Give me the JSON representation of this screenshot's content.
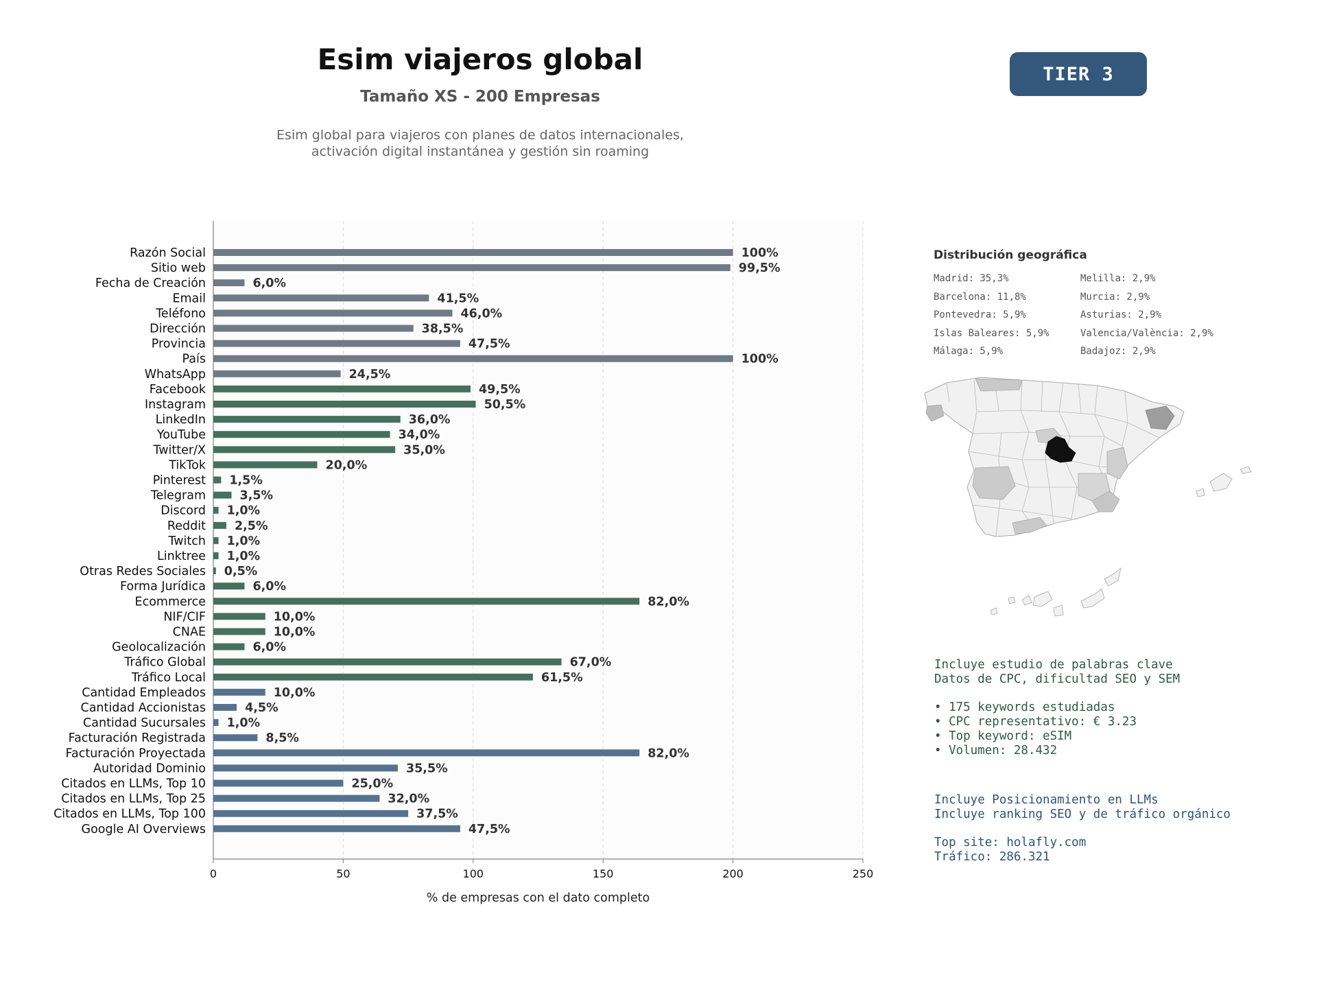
{
  "header": {
    "title": "Esim viajeros global",
    "subtitle": "Tamaño XS - 200 Empresas",
    "description_line1": "Esim global para viajeros con planes de datos internacionales,",
    "description_line2": "activación digital instantánea y gestión sin roaming",
    "tier_badge": "TIER 3"
  },
  "colors": {
    "identity": "#6f7a86",
    "social": "#46705e",
    "business": "#56728f",
    "tier_badge": "#34587c",
    "map_highlight": "#111111"
  },
  "chart_data": {
    "type": "bar",
    "orientation": "horizontal",
    "xlabel": "% de empresas con el dato completo",
    "xlim": [
      0,
      250
    ],
    "xticks": [
      0,
      50,
      100,
      150,
      200,
      250
    ],
    "grid": "vertical-dashed",
    "categories": [
      "Razón Social",
      "Sitio web",
      "Fecha de Creación",
      "Email",
      "Teléfono",
      "Dirección",
      "Provincia",
      "País",
      "WhatsApp",
      "Facebook",
      "Instagram",
      "LinkedIn",
      "YouTube",
      "Twitter/X",
      "TikTok",
      "Pinterest",
      "Telegram",
      "Discord",
      "Reddit",
      "Twitch",
      "Linktree",
      "Otras Redes Sociales",
      "Forma Jurídica",
      "Ecommerce",
      "NIF/CIF",
      "CNAE",
      "Geolocalización",
      "Tráfico Global",
      "Tráfico Local",
      "Cantidad Empleados",
      "Cantidad Accionistas",
      "Cantidad Sucursales",
      "Facturación Registrada",
      "Facturación Proyectada",
      "Autoridad Dominio",
      "Citados en LLMs, Top 10",
      "Citados en LLMs, Top 25",
      "Citados en LLMs, Top 100",
      "Google AI Overviews"
    ],
    "values": [
      200,
      199,
      12,
      83,
      92,
      77,
      95,
      200,
      49,
      99,
      101,
      72,
      68,
      70,
      40,
      3,
      7,
      2,
      5,
      2,
      2,
      1,
      12,
      164,
      20,
      20,
      12,
      134,
      123,
      20,
      9,
      2,
      17,
      164,
      71,
      50,
      64,
      75,
      95
    ],
    "data_labels": [
      "100%",
      "99,5%",
      "6,0%",
      "41,5%",
      "46,0%",
      "38,5%",
      "47,5%",
      "100%",
      "24,5%",
      "49,5%",
      "50,5%",
      "36,0%",
      "34,0%",
      "35,0%",
      "20,0%",
      "1,5%",
      "3,5%",
      "1,0%",
      "2,5%",
      "1,0%",
      "1,0%",
      "0,5%",
      "6,0%",
      "82,0%",
      "10,0%",
      "10,0%",
      "6,0%",
      "67,0%",
      "61,5%",
      "10,0%",
      "4,5%",
      "1,0%",
      "8,5%",
      "82,0%",
      "35,5%",
      "25,0%",
      "32,0%",
      "37,5%",
      "47,5%"
    ],
    "groups": [
      "identity",
      "identity",
      "identity",
      "identity",
      "identity",
      "identity",
      "identity",
      "identity",
      "identity",
      "social",
      "social",
      "social",
      "social",
      "social",
      "social",
      "social",
      "social",
      "social",
      "social",
      "social",
      "social",
      "social",
      "social",
      "social",
      "social",
      "social",
      "social",
      "social",
      "social",
      "business",
      "business",
      "business",
      "business",
      "business",
      "business",
      "business",
      "business",
      "business",
      "business"
    ]
  },
  "geo": {
    "title": "Distribución geográfica",
    "col1": [
      "Madrid: 35,3%",
      "Barcelona: 11,8%",
      "Pontevedra: 5,9%",
      "Islas Baleares: 5,9%",
      "Málaga: 5,9%"
    ],
    "col2": [
      "Melilla: 2,9%",
      "Murcia: 2,9%",
      "Asturias: 2,9%",
      "Valencia/València: 2,9%",
      "Badajoz: 2,9%"
    ]
  },
  "keywords": {
    "line1": "Incluye estudio de palabras clave",
    "line2": "Datos de CPC, dificultad SEO y SEM",
    "bullets": [
      "• 175 keywords estudiadas",
      "• CPC representativo: € 3.23",
      "• Top keyword: eSIM",
      "• Volumen: 28.432"
    ]
  },
  "llm": {
    "line1": "Incluye Posicionamiento en LLMs",
    "line2": "Incluye ranking SEO y de tráfico orgánico",
    "top_site": "Top site: holafly.com",
    "traffic": "Tráfico: 286.321"
  }
}
